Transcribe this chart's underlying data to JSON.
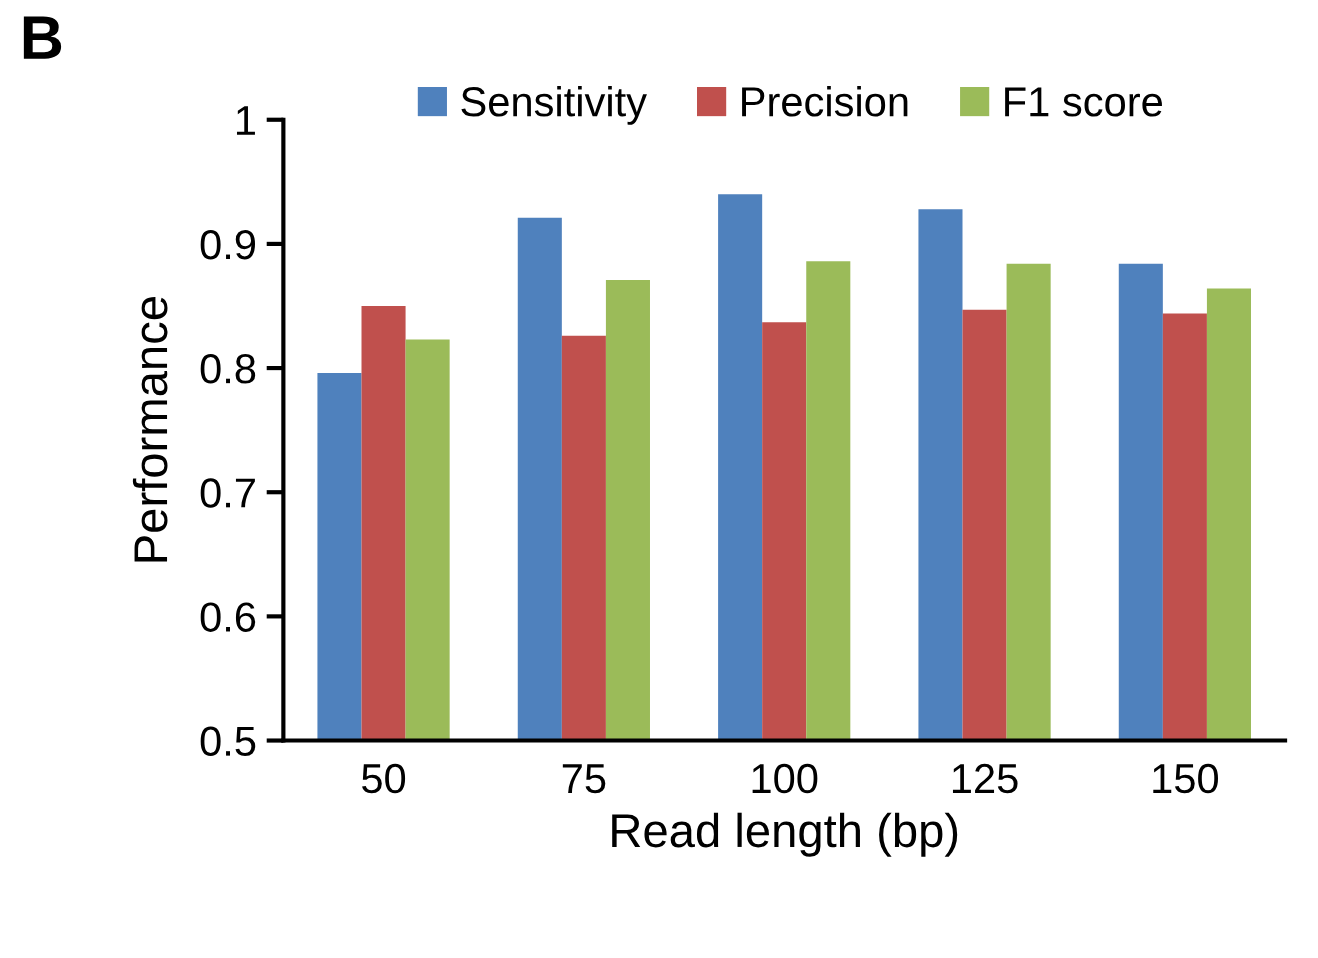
{
  "chart_data": {
    "type": "bar",
    "annotations": [
      "B"
    ],
    "xlabel": "Read length (bp)",
    "ylabel": "Performance",
    "categories": [
      "50",
      "75",
      "100",
      "125",
      "150"
    ],
    "series": [
      {
        "name": "Sensitivity",
        "color": "#4f81bd",
        "values": [
          0.796,
          0.921,
          0.94,
          0.928,
          0.884
        ]
      },
      {
        "name": "Precision",
        "color": "#c0504d",
        "values": [
          0.85,
          0.826,
          0.837,
          0.847,
          0.844
        ]
      },
      {
        "name": "F1 score",
        "color": "#9bbb59",
        "values": [
          0.823,
          0.871,
          0.886,
          0.884,
          0.864
        ]
      }
    ],
    "ylim": [
      0.5,
      1
    ],
    "yticks": [
      0.5,
      0.6,
      0.7,
      0.8,
      0.9,
      1
    ],
    "legend": "top",
    "grid": false
  }
}
